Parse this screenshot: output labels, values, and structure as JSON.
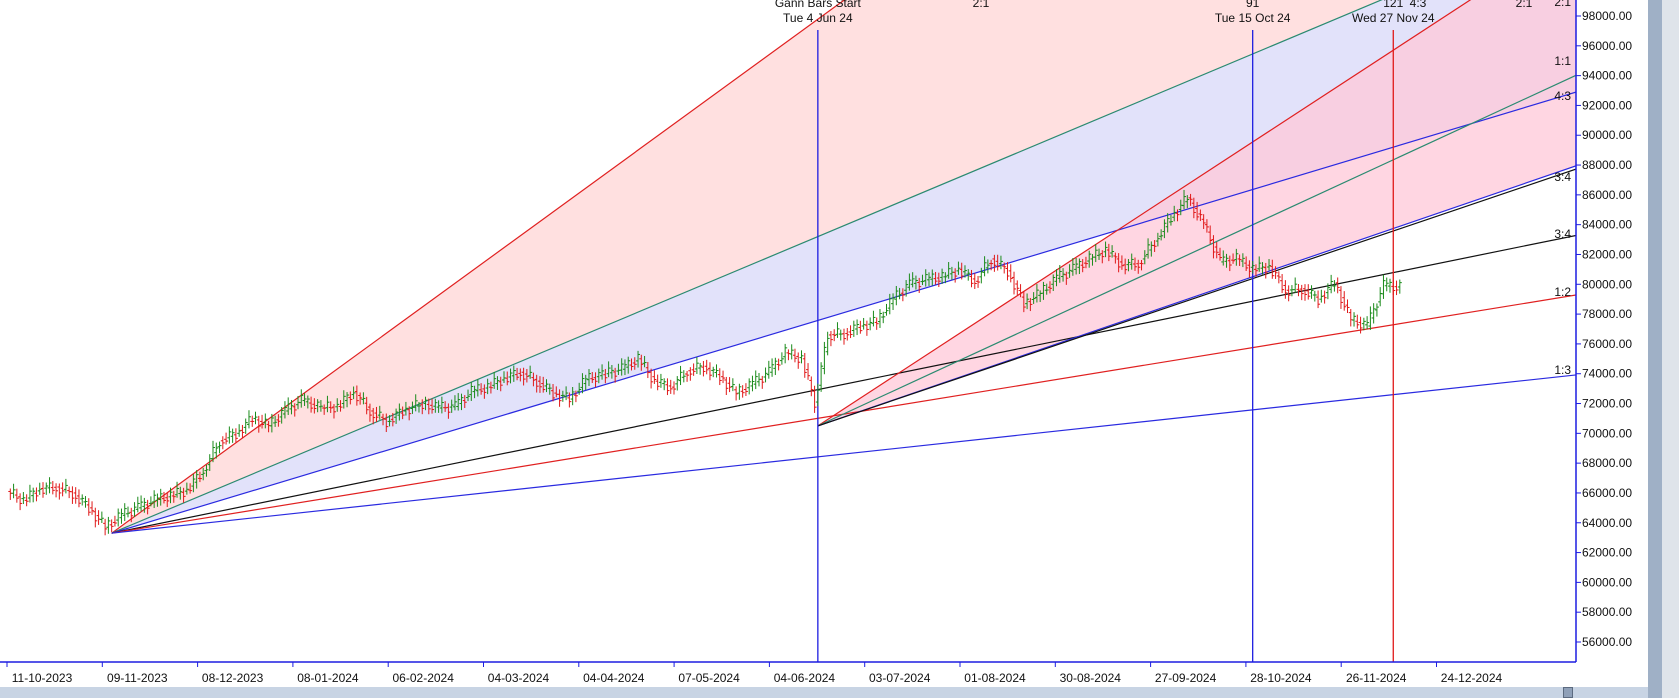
{
  "chart_data": {
    "type": "line",
    "title": "",
    "xlabel": "",
    "ylabel": "",
    "x_tick_labels": [
      "11-10-2023",
      "09-11-2023",
      "08-12-2023",
      "08-01-2024",
      "06-02-2024",
      "04-03-2024",
      "04-04-2024",
      "07-05-2024",
      "04-06-2024",
      "03-07-2024",
      "01-08-2024",
      "30-08-2024",
      "27-09-2024",
      "28-10-2024",
      "26-11-2024",
      "24-12-2024"
    ],
    "y_tick_labels": [
      "56000.00",
      "58000.00",
      "60000.00",
      "62000.00",
      "64000.00",
      "66000.00",
      "68000.00",
      "70000.00",
      "72000.00",
      "74000.00",
      "76000.00",
      "78000.00",
      "80000.00",
      "82000.00",
      "84000.00",
      "86000.00",
      "88000.00",
      "90000.00",
      "92000.00",
      "94000.00",
      "96000.00",
      "98000.00"
    ],
    "ylim": [
      55000,
      99000
    ],
    "grid": false,
    "price_series": [
      {
        "date": "2023-10-01",
        "close": 66100
      },
      {
        "date": "2023-10-06",
        "close": 65500
      },
      {
        "date": "2023-10-11",
        "close": 66300
      },
      {
        "date": "2023-10-16",
        "close": 66400
      },
      {
        "date": "2023-10-21",
        "close": 66000
      },
      {
        "date": "2023-10-26",
        "close": 65000
      },
      {
        "date": "2023-10-31",
        "close": 63700
      },
      {
        "date": "2023-11-05",
        "close": 64500
      },
      {
        "date": "2023-11-10",
        "close": 65000
      },
      {
        "date": "2023-11-15",
        "close": 65500
      },
      {
        "date": "2023-11-20",
        "close": 65800
      },
      {
        "date": "2023-11-25",
        "close": 66200
      },
      {
        "date": "2023-11-30",
        "close": 67500
      },
      {
        "date": "2023-12-05",
        "close": 69500
      },
      {
        "date": "2023-12-10",
        "close": 70000
      },
      {
        "date": "2023-12-15",
        "close": 71000
      },
      {
        "date": "2023-12-20",
        "close": 70500
      },
      {
        "date": "2023-12-25",
        "close": 71500
      },
      {
        "date": "2023-12-30",
        "close": 72200
      },
      {
        "date": "2024-01-05",
        "close": 71700
      },
      {
        "date": "2024-01-10",
        "close": 71800
      },
      {
        "date": "2024-01-15",
        "close": 72800
      },
      {
        "date": "2024-01-20",
        "close": 71500
      },
      {
        "date": "2024-01-25",
        "close": 70800
      },
      {
        "date": "2024-01-30",
        "close": 71500
      },
      {
        "date": "2024-02-05",
        "close": 72000
      },
      {
        "date": "2024-02-10",
        "close": 71700
      },
      {
        "date": "2024-02-15",
        "close": 71800
      },
      {
        "date": "2024-02-20",
        "close": 72800
      },
      {
        "date": "2024-02-25",
        "close": 73100
      },
      {
        "date": "2024-03-01",
        "close": 73700
      },
      {
        "date": "2024-03-06",
        "close": 74100
      },
      {
        "date": "2024-03-11",
        "close": 73500
      },
      {
        "date": "2024-03-16",
        "close": 72700
      },
      {
        "date": "2024-03-21",
        "close": 72300
      },
      {
        "date": "2024-03-26",
        "close": 73600
      },
      {
        "date": "2024-04-01",
        "close": 74000
      },
      {
        "date": "2024-04-06",
        "close": 74300
      },
      {
        "date": "2024-04-11",
        "close": 75000
      },
      {
        "date": "2024-04-16",
        "close": 73500
      },
      {
        "date": "2024-04-21",
        "close": 73100
      },
      {
        "date": "2024-04-26",
        "close": 74200
      },
      {
        "date": "2024-05-01",
        "close": 74500
      },
      {
        "date": "2024-05-06",
        "close": 73800
      },
      {
        "date": "2024-05-11",
        "close": 72700
      },
      {
        "date": "2024-05-16",
        "close": 73300
      },
      {
        "date": "2024-05-21",
        "close": 74100
      },
      {
        "date": "2024-05-26",
        "close": 75400
      },
      {
        "date": "2024-05-31",
        "close": 75000
      },
      {
        "date": "2024-06-04",
        "close": 72100
      },
      {
        "date": "2024-06-08",
        "close": 76600
      },
      {
        "date": "2024-06-13",
        "close": 76700
      },
      {
        "date": "2024-06-18",
        "close": 77200
      },
      {
        "date": "2024-06-23",
        "close": 77500
      },
      {
        "date": "2024-06-28",
        "close": 79000
      },
      {
        "date": "2024-07-03",
        "close": 80000
      },
      {
        "date": "2024-07-08",
        "close": 80300
      },
      {
        "date": "2024-07-13",
        "close": 80500
      },
      {
        "date": "2024-07-18",
        "close": 81000
      },
      {
        "date": "2024-07-23",
        "close": 80200
      },
      {
        "date": "2024-07-28",
        "close": 81700
      },
      {
        "date": "2024-08-02",
        "close": 80900
      },
      {
        "date": "2024-08-07",
        "close": 78700
      },
      {
        "date": "2024-08-12",
        "close": 79400
      },
      {
        "date": "2024-08-17",
        "close": 80400
      },
      {
        "date": "2024-08-22",
        "close": 81000
      },
      {
        "date": "2024-08-27",
        "close": 81700
      },
      {
        "date": "2024-09-01",
        "close": 82300
      },
      {
        "date": "2024-09-06",
        "close": 81300
      },
      {
        "date": "2024-09-11",
        "close": 81400
      },
      {
        "date": "2024-09-16",
        "close": 82900
      },
      {
        "date": "2024-09-21",
        "close": 84500
      },
      {
        "date": "2024-09-26",
        "close": 85800
      },
      {
        "date": "2024-10-01",
        "close": 84000
      },
      {
        "date": "2024-10-06",
        "close": 81500
      },
      {
        "date": "2024-10-11",
        "close": 81700
      },
      {
        "date": "2024-10-16",
        "close": 81000
      },
      {
        "date": "2024-10-21",
        "close": 81200
      },
      {
        "date": "2024-10-26",
        "close": 79600
      },
      {
        "date": "2024-10-31",
        "close": 79700
      },
      {
        "date": "2024-11-05",
        "close": 79000
      },
      {
        "date": "2024-11-10",
        "close": 80100
      },
      {
        "date": "2024-11-15",
        "close": 77600
      },
      {
        "date": "2024-11-20",
        "close": 77200
      },
      {
        "date": "2024-11-25",
        "close": 79900
      },
      {
        "date": "2024-11-30",
        "close": 79800
      }
    ],
    "vertical_markers": [
      {
        "date": "2024-06-04",
        "color": "#1d1de0",
        "labels": [
          "Gann Bars Start",
          "Tue 4 Jun 24"
        ]
      },
      {
        "date": "2024-10-15",
        "color": "#1d1de0",
        "labels": [
          "91",
          "Tue 15 Oct 24"
        ]
      },
      {
        "date": "2024-11-27",
        "color": "#e01818",
        "labels": [
          "121",
          "Wed 27 Nov 24"
        ]
      }
    ],
    "fans": [
      {
        "origin": {
          "date": "2023-11-01",
          "value": 63300
        },
        "lines": [
          {
            "through": {
              "date": "2023-12-28",
              "value": 72400
            },
            "color": "#e02020"
          },
          {
            "through": {
              "date": "2024-06-04",
              "value": 83200
            },
            "color": "#2a8a70"
          },
          {
            "through": {
              "date": "2024-08-07",
              "value": 81800
            },
            "color": "#2a2ae0"
          },
          {
            "through": {
              "date": "2024-12-31",
              "value": 82300
            },
            "color": "#111111"
          },
          {
            "through": {
              "date": "2024-12-31",
              "value": 78500
            },
            "color": "#e02020"
          },
          {
            "through": {
              "date": "2024-12-31",
              "value": 73400
            },
            "color": "#2a2ae0"
          }
        ],
        "shades": [
          {
            "between": [
              0,
              1
            ],
            "color": "#ffd6d6"
          },
          {
            "between": [
              1,
              2
            ],
            "color": "#d8d8f8"
          }
        ]
      },
      {
        "origin": {
          "date": "2024-06-04",
          "value": 70500
        },
        "lines": [
          {
            "through": {
              "date": "2024-12-20",
              "value": 99000
            },
            "color": "#e02020"
          },
          {
            "through": {
              "date": "2024-12-31",
              "value": 86300
            },
            "color": "#2a2ae0"
          },
          {
            "through": {
              "date": "2024-12-31",
              "value": 91800
            },
            "color": "#2a8a70"
          },
          {
            "through": {
              "date": "2024-12-31",
              "value": 86100
            },
            "color": "#111111"
          }
        ],
        "shades": [
          {
            "between": [
              0,
              1
            ],
            "color": "#ffc8d8"
          }
        ]
      }
    ],
    "right_edge_labels": [
      "2:1",
      "1:1",
      "4:3",
      "3:4",
      "3:4",
      "1:2",
      "1:3"
    ],
    "top_labels": [
      "2:1",
      "4:3",
      "2:1"
    ],
    "colors": {
      "up": "#1a8a1a",
      "down": "#e01818"
    }
  }
}
